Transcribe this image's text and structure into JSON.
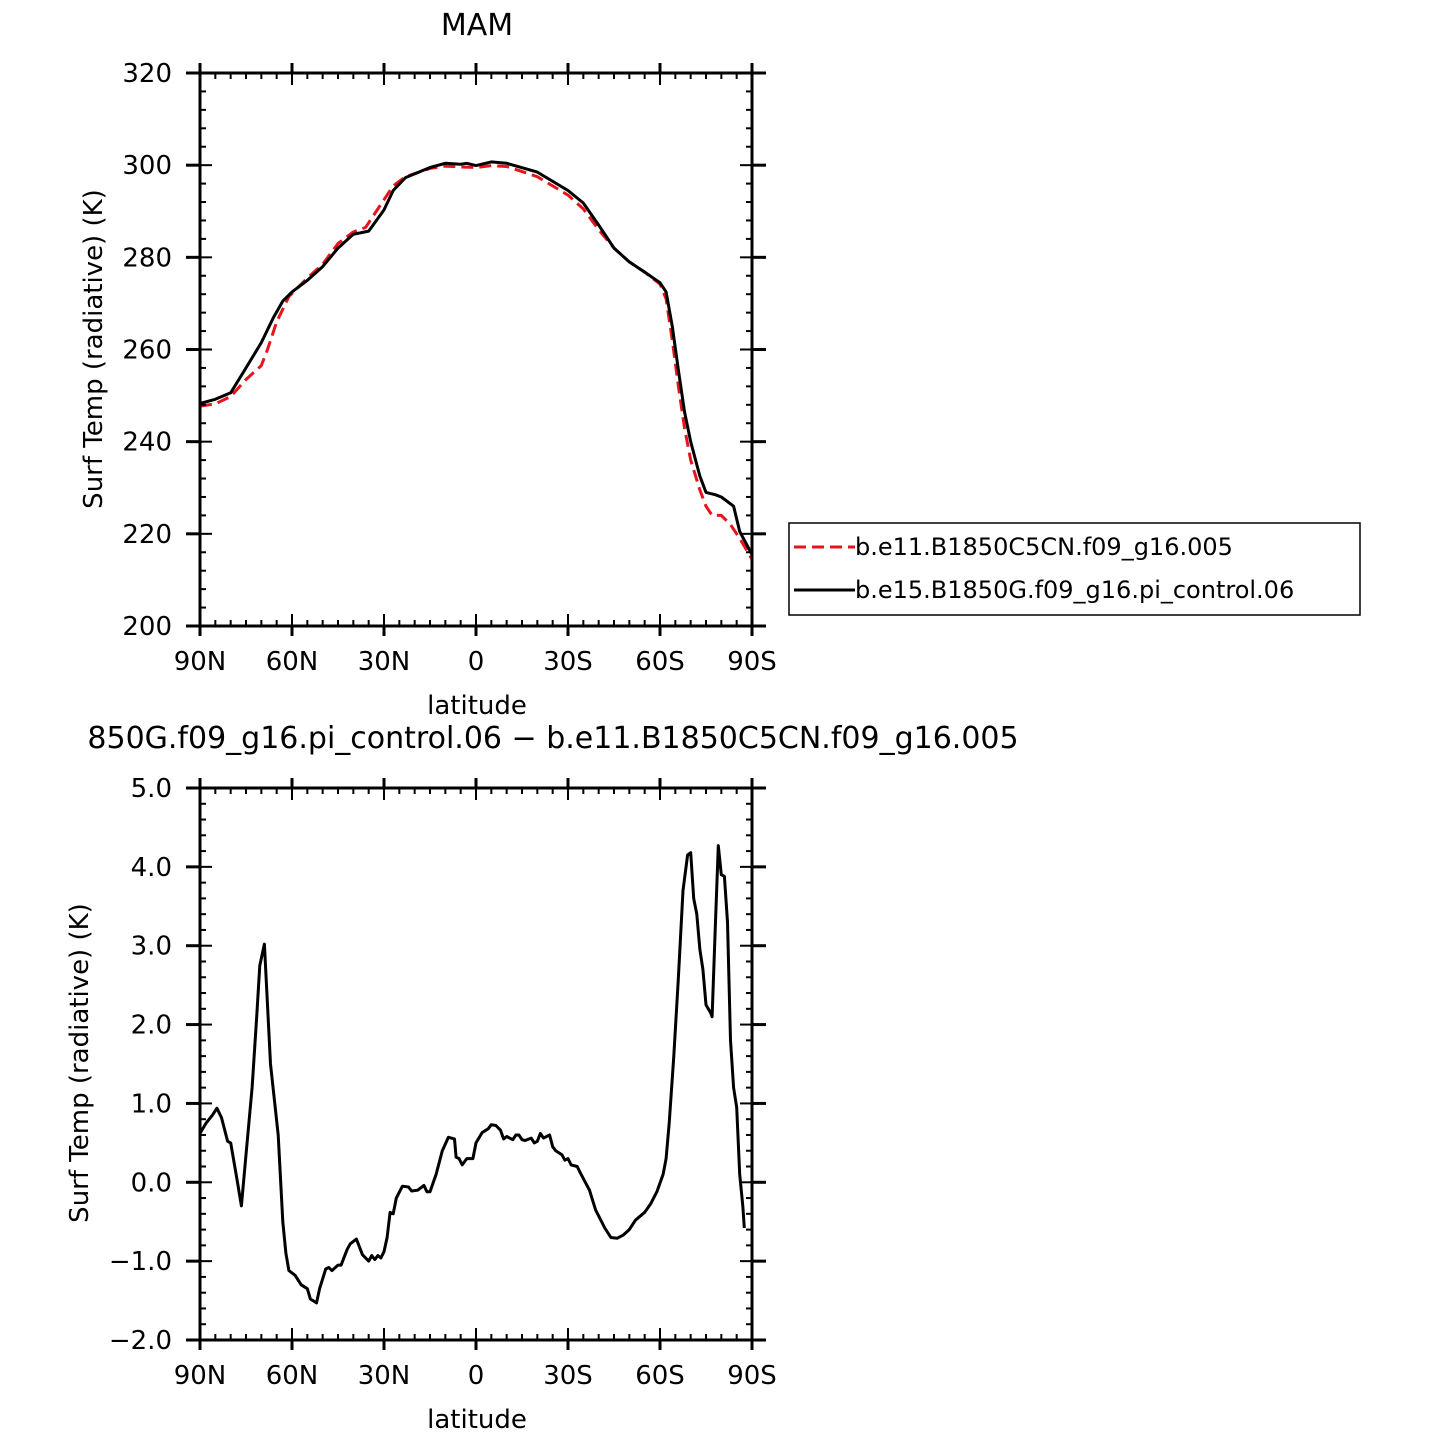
{
  "chart_data": [
    {
      "type": "line",
      "title": "MAM",
      "xlabel": "latitude",
      "ylabel": "Surf Temp (radiative) (K)",
      "xlim": [
        90,
        -90
      ],
      "ylim": [
        200,
        320
      ],
      "x_ticks": [
        {
          "value": 90,
          "label": "90N"
        },
        {
          "value": 60,
          "label": "60N"
        },
        {
          "value": 30,
          "label": "30N"
        },
        {
          "value": 0,
          "label": "0"
        },
        {
          "value": -30,
          "label": "30S"
        },
        {
          "value": -60,
          "label": "60S"
        },
        {
          "value": -90,
          "label": "90S"
        }
      ],
      "y_ticks": [
        {
          "value": 200,
          "label": "200"
        },
        {
          "value": 220,
          "label": "220"
        },
        {
          "value": 240,
          "label": "240"
        },
        {
          "value": 260,
          "label": "260"
        },
        {
          "value": 280,
          "label": "280"
        },
        {
          "value": 300,
          "label": "300"
        },
        {
          "value": 320,
          "label": "320"
        }
      ],
      "legend_position": "right",
      "series": [
        {
          "name": "b.e11.B1850C5CN.f09_g16.005",
          "color": "#e8141c",
          "dash": "dashed",
          "points": [
            [
              90,
              247.7
            ],
            [
              85,
              248.2
            ],
            [
              80,
              249.8
            ],
            [
              75,
              253.5
            ],
            [
              70,
              256.5
            ],
            [
              68,
              260
            ],
            [
              65,
              266
            ],
            [
              61,
              271.5
            ],
            [
              55,
              275.5
            ],
            [
              50,
              278.5
            ],
            [
              45,
              283
            ],
            [
              40,
              285.5
            ],
            [
              36,
              286.5
            ],
            [
              30,
              292.5
            ],
            [
              27,
              295.5
            ],
            [
              23,
              297.5
            ],
            [
              15,
              299.3
            ],
            [
              10,
              299.8
            ],
            [
              5,
              299.6
            ],
            [
              0,
              299.5
            ],
            [
              -5,
              299.9
            ],
            [
              -10,
              299.7
            ],
            [
              -20,
              297.5
            ],
            [
              -30,
              293.5
            ],
            [
              -35,
              290.5
            ],
            [
              -40,
              286
            ],
            [
              -45,
              282
            ],
            [
              -50,
              279
            ],
            [
              -55,
              276.8
            ],
            [
              -60,
              274.2
            ],
            [
              -62,
              271
            ],
            [
              -64,
              262
            ],
            [
              -66,
              252
            ],
            [
              -68,
              243
            ],
            [
              -70,
              236
            ],
            [
              -73,
              229.5
            ],
            [
              -75,
              226
            ],
            [
              -77,
              224
            ],
            [
              -80,
              224
            ],
            [
              -83,
              222
            ],
            [
              -86,
              219
            ],
            [
              -90,
              214.5
            ]
          ]
        },
        {
          "name": "b.e15.B1850G.f09_g16.pi_control.06",
          "color": "#000000",
          "dash": "solid",
          "points": [
            [
              90,
              248.3
            ],
            [
              85,
              249.2
            ],
            [
              80,
              250.6
            ],
            [
              75,
              256
            ],
            [
              70,
              261.5
            ],
            [
              66,
              267
            ],
            [
              63,
              270.5
            ],
            [
              60,
              272.5
            ],
            [
              55,
              275
            ],
            [
              50,
              278
            ],
            [
              45,
              282
            ],
            [
              40,
              285
            ],
            [
              35,
              285.7
            ],
            [
              30,
              290.3
            ],
            [
              27,
              294.5
            ],
            [
              23,
              297.3
            ],
            [
              15,
              299.5
            ],
            [
              10,
              300.4
            ],
            [
              5,
              300.2
            ],
            [
              3,
              300.4
            ],
            [
              0,
              299.9
            ],
            [
              -5,
              300.7
            ],
            [
              -10,
              300.4
            ],
            [
              -20,
              298.5
            ],
            [
              -30,
              294.5
            ],
            [
              -35,
              291.8
            ],
            [
              -40,
              287
            ],
            [
              -45,
              282
            ],
            [
              -50,
              279
            ],
            [
              -55,
              276.8
            ],
            [
              -60,
              274.5
            ],
            [
              -62,
              272.5
            ],
            [
              -64,
              265
            ],
            [
              -66,
              255.5
            ],
            [
              -68,
              246.5
            ],
            [
              -70,
              240
            ],
            [
              -73,
              232.5
            ],
            [
              -75,
              229
            ],
            [
              -78,
              228.5
            ],
            [
              -80,
              228
            ],
            [
              -84,
              226
            ],
            [
              -86,
              220.5
            ],
            [
              -90,
              215.5
            ]
          ]
        }
      ]
    },
    {
      "type": "line",
      "title": "850G.f09_g16.pi_control.06 − b.e11.B1850C5CN.f09_g16.005",
      "xlabel": "latitude",
      "ylabel": "Surf Temp (radiative) (K)",
      "xlim": [
        90,
        -90
      ],
      "ylim": [
        -2.0,
        5.0
      ],
      "x_ticks": [
        {
          "value": 90,
          "label": "90N"
        },
        {
          "value": 60,
          "label": "60N"
        },
        {
          "value": 30,
          "label": "30N"
        },
        {
          "value": 0,
          "label": "0"
        },
        {
          "value": -30,
          "label": "30S"
        },
        {
          "value": -60,
          "label": "60S"
        },
        {
          "value": -90,
          "label": "90S"
        }
      ],
      "y_ticks": [
        {
          "value": -2.0,
          "label": "−2.0"
        },
        {
          "value": -1.0,
          "label": "−1.0"
        },
        {
          "value": 0.0,
          "label": "0.0"
        },
        {
          "value": 1.0,
          "label": "1.0"
        },
        {
          "value": 2.0,
          "label": "2.0"
        },
        {
          "value": 3.0,
          "label": "3.0"
        },
        {
          "value": 4.0,
          "label": "4.0"
        },
        {
          "value": 5.0,
          "label": "5.0"
        }
      ],
      "series": [
        {
          "color": "#000000",
          "dash": "solid",
          "points": [
            [
              90,
              0.62
            ],
            [
              88,
              0.75
            ],
            [
              86,
              0.85
            ],
            [
              84.5,
              0.94
            ],
            [
              83,
              0.82
            ],
            [
              81,
              0.52
            ],
            [
              80,
              0.5
            ],
            [
              78,
              0.05
            ],
            [
              76.5,
              -0.3
            ],
            [
              75,
              0.35
            ],
            [
              73,
              1.2
            ],
            [
              71.5,
              2.1
            ],
            [
              70.5,
              2.75
            ],
            [
              69,
              3.02
            ],
            [
              67,
              1.5
            ],
            [
              64.5,
              0.6
            ],
            [
              63,
              -0.5
            ],
            [
              62,
              -0.9
            ],
            [
              61,
              -1.12
            ],
            [
              59,
              -1.18
            ],
            [
              57,
              -1.3
            ],
            [
              55,
              -1.35
            ],
            [
              54,
              -1.48
            ],
            [
              52,
              -1.53
            ],
            [
              51,
              -1.35
            ],
            [
              49,
              -1.1
            ],
            [
              48,
              -1.08
            ],
            [
              47,
              -1.12
            ],
            [
              45,
              -1.05
            ],
            [
              44,
              -1.05
            ],
            [
              42,
              -0.85
            ],
            [
              41,
              -0.78
            ],
            [
              39,
              -0.72
            ],
            [
              37,
              -0.92
            ],
            [
              35,
              -1.0
            ],
            [
              34,
              -0.93
            ],
            [
              33,
              -0.98
            ],
            [
              32,
              -0.93
            ],
            [
              31,
              -0.96
            ],
            [
              30,
              -0.88
            ],
            [
              29,
              -0.7
            ],
            [
              28,
              -0.38
            ],
            [
              27,
              -0.4
            ],
            [
              26,
              -0.2
            ],
            [
              24,
              -0.05
            ],
            [
              22,
              -0.06
            ],
            [
              21,
              -0.11
            ],
            [
              19,
              -0.1
            ],
            [
              17,
              -0.04
            ],
            [
              16,
              -0.12
            ],
            [
              15,
              -0.12
            ],
            [
              13,
              0.1
            ],
            [
              11,
              0.4
            ],
            [
              9,
              0.57
            ],
            [
              7,
              0.55
            ],
            [
              6.5,
              0.32
            ],
            [
              5.5,
              0.3
            ],
            [
              4.5,
              0.22
            ],
            [
              3,
              0.3
            ],
            [
              1,
              0.3
            ],
            [
              0,
              0.5
            ],
            [
              -2,
              0.63
            ],
            [
              -4,
              0.68
            ],
            [
              -5,
              0.73
            ],
            [
              -6.5,
              0.72
            ],
            [
              -8,
              0.66
            ],
            [
              -9,
              0.55
            ],
            [
              -10,
              0.58
            ],
            [
              -12,
              0.54
            ],
            [
              -13,
              0.6
            ],
            [
              -14,
              0.6
            ],
            [
              -15,
              0.54
            ],
            [
              -16,
              0.53
            ],
            [
              -18,
              0.56
            ],
            [
              -19,
              0.5
            ],
            [
              -20,
              0.52
            ],
            [
              -21,
              0.62
            ],
            [
              -22,
              0.56
            ],
            [
              -24,
              0.6
            ],
            [
              -25,
              0.45
            ],
            [
              -26,
              0.4
            ],
            [
              -28,
              0.35
            ],
            [
              -29,
              0.28
            ],
            [
              -30,
              0.3
            ],
            [
              -31,
              0.22
            ],
            [
              -33,
              0.2
            ],
            [
              -34,
              0.12
            ],
            [
              -37,
              -0.1
            ],
            [
              -39,
              -0.35
            ],
            [
              -42,
              -0.58
            ],
            [
              -44,
              -0.7
            ],
            [
              -46,
              -0.71
            ],
            [
              -48,
              -0.67
            ],
            [
              -50,
              -0.6
            ],
            [
              -52,
              -0.48
            ],
            [
              -55,
              -0.38
            ],
            [
              -57,
              -0.27
            ],
            [
              -59,
              -0.12
            ],
            [
              -61,
              0.1
            ],
            [
              -62,
              0.3
            ],
            [
              -63,
              0.75
            ],
            [
              -64.5,
              1.6
            ],
            [
              -66,
              2.6
            ],
            [
              -67.5,
              3.7
            ],
            [
              -69,
              4.15
            ],
            [
              -70,
              4.18
            ],
            [
              -71,
              3.6
            ],
            [
              -72,
              3.4
            ],
            [
              -73,
              2.95
            ],
            [
              -74,
              2.7
            ],
            [
              -75,
              2.25
            ],
            [
              -76.5,
              2.15
            ],
            [
              -77,
              2.1
            ],
            [
              -78,
              3.2
            ],
            [
              -79,
              4.27
            ],
            [
              -80,
              3.9
            ],
            [
              -81,
              3.88
            ],
            [
              -82,
              3.3
            ],
            [
              -83,
              1.8
            ],
            [
              -84,
              1.2
            ],
            [
              -85,
              0.95
            ],
            [
              -86,
              0.1
            ],
            [
              -87,
              -0.3
            ],
            [
              -87.5,
              -0.58
            ]
          ]
        }
      ]
    }
  ]
}
